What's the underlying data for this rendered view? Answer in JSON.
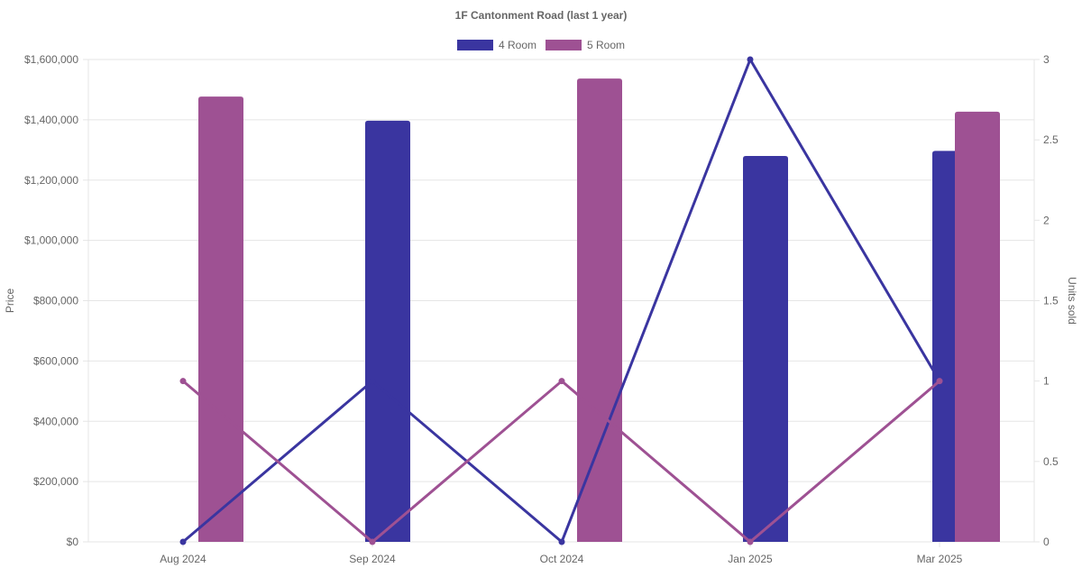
{
  "chart_data": {
    "type": "bar",
    "title": "1F Cantonment Road (last 1 year)",
    "categories": [
      "Aug 2024",
      "Sep 2024",
      "Oct 2024",
      "Jan 2025",
      "Mar 2025"
    ],
    "series": [
      {
        "name": "4 Room",
        "color": "#3a35a0",
        "price": [
          null,
          1397000,
          null,
          1280000,
          1297000
        ],
        "units_sold": [
          0,
          1,
          0,
          3,
          1
        ]
      },
      {
        "name": "5 Room",
        "color": "#9e5193",
        "price": [
          1477000,
          null,
          1537000,
          null,
          1427000
        ],
        "units_sold": [
          1,
          0,
          1,
          0,
          1
        ]
      }
    ],
    "y_left": {
      "label": "Price",
      "range": [
        0,
        1600000
      ],
      "ticks": [
        "$0",
        "$200,000",
        "$400,000",
        "$600,000",
        "$800,000",
        "$1,000,000",
        "$1,200,000",
        "$1,400,000",
        "$1,600,000"
      ]
    },
    "y_right": {
      "label": "Units sold",
      "range": [
        0,
        3
      ],
      "ticks": [
        "0",
        "0.5",
        "1",
        "1.5",
        "2",
        "2.5",
        "3"
      ]
    },
    "grid": true,
    "legend_position": "top-center"
  }
}
